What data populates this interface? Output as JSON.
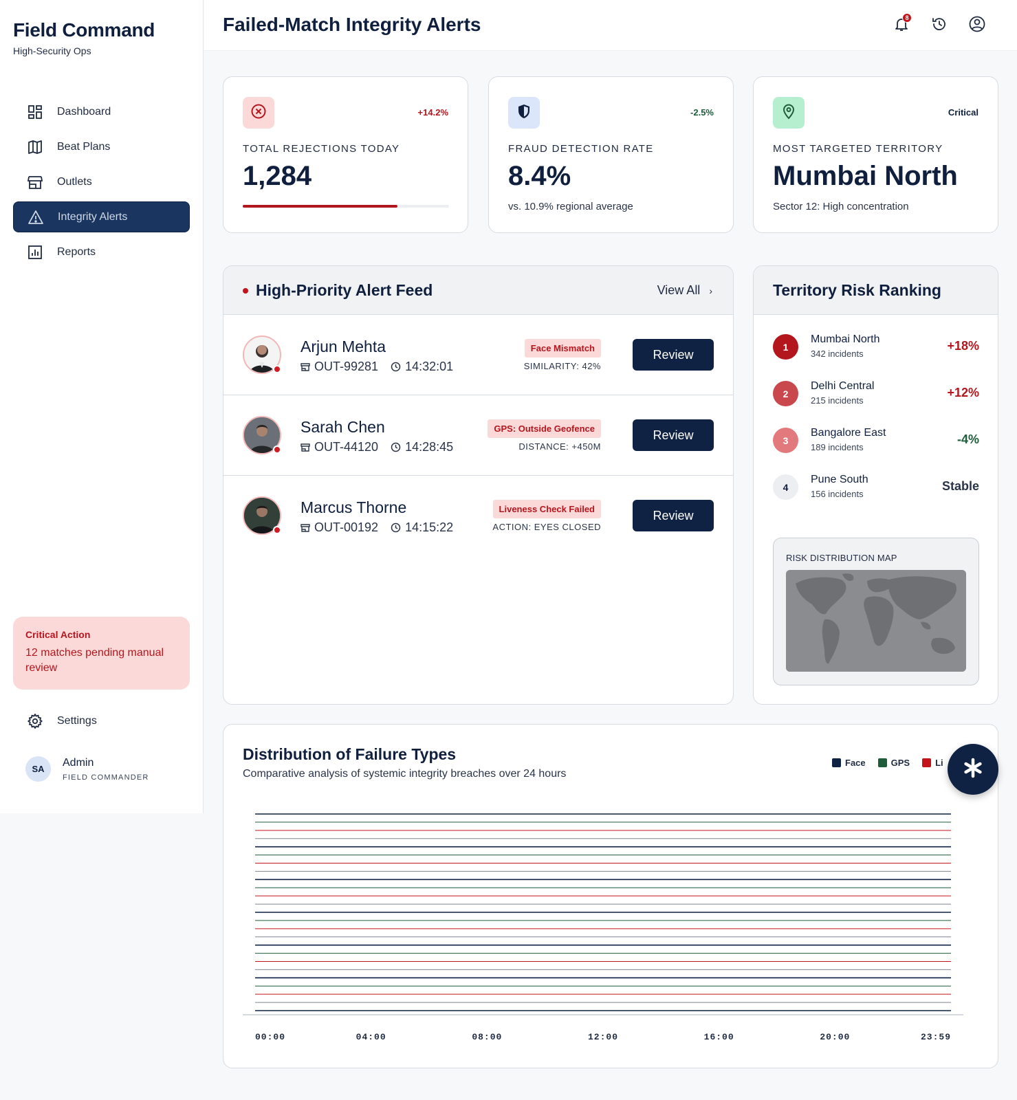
{
  "sidebar": {
    "brand_title": "Field Command",
    "brand_subtitle": "High-Security Ops",
    "nav": [
      {
        "label": "Dashboard",
        "icon": "dashboard-icon",
        "active": false
      },
      {
        "label": "Beat Plans",
        "icon": "map-icon",
        "active": false
      },
      {
        "label": "Outlets",
        "icon": "store-icon",
        "active": false
      },
      {
        "label": "Integrity Alerts",
        "icon": "warning-icon",
        "active": true
      },
      {
        "label": "Reports",
        "icon": "bar-chart-icon",
        "active": false
      }
    ],
    "critical": {
      "title": "Critical Action",
      "text": "12 matches pending manual review"
    },
    "settings_label": "Settings",
    "user": {
      "initials": "SA",
      "name": "Admin",
      "role": "FIELD COMMANDER"
    }
  },
  "header": {
    "title": "Failed-Match Integrity Alerts",
    "notification_count": "8"
  },
  "stats": [
    {
      "label": "TOTAL REJECTIONS TODAY",
      "value": "1,284",
      "delta": "+14.2%",
      "delta_color": "#b3161c",
      "icon": "cancel-circle-icon",
      "icon_bg": "#fcd9d9",
      "progress": 0.75
    },
    {
      "label": "FRAUD DETECTION RATE",
      "value": "8.4%",
      "delta": "-2.5%",
      "delta_color": "#1f5c3a",
      "note": "vs. 10.9% regional average",
      "icon": "shield-icon",
      "icon_bg": "#dbe6fb"
    },
    {
      "label": "MOST TARGETED TERRITORY",
      "value": "Mumbai North",
      "delta": "Critical",
      "delta_color": "#0f1f3d",
      "note": "Sector 12: High concentration",
      "icon": "location-pin-icon",
      "icon_bg": "#b6efcf"
    }
  ],
  "feed": {
    "title": "High-Priority Alert Feed",
    "view_all": "View All",
    "alerts": [
      {
        "name": "Arjun Mehta",
        "outlet": "OUT-99281",
        "time": "14:32:01",
        "tag": "Face Mismatch",
        "detail": "SIMILARITY: 42%",
        "action": "Review"
      },
      {
        "name": "Sarah Chen",
        "outlet": "OUT-44120",
        "time": "14:28:45",
        "tag": "GPS: Outside Geofence",
        "detail": "DISTANCE: +450M",
        "action": "Review"
      },
      {
        "name": "Marcus Thorne",
        "outlet": "OUT-00192",
        "time": "14:15:22",
        "tag": "Liveness Check Failed",
        "detail": "ACTION: EYES CLOSED",
        "action": "Review"
      }
    ]
  },
  "territory": {
    "title": "Territory Risk Ranking",
    "ranks": [
      {
        "rank": "1",
        "name": "Mumbai North",
        "incidents": "342 incidents",
        "change": "+18%",
        "change_color": "#b3161c",
        "circle_bg": "#b3161c",
        "circle_fg": "#ffffff"
      },
      {
        "rank": "2",
        "name": "Delhi Central",
        "incidents": "215 incidents",
        "change": "+12%",
        "change_color": "#b3161c",
        "circle_bg": "#c9484d",
        "circle_fg": "#ffffff"
      },
      {
        "rank": "3",
        "name": "Bangalore East",
        "incidents": "189 incidents",
        "change": "-4%",
        "change_color": "#1f5c3a",
        "circle_bg": "#e27a7d",
        "circle_fg": "#ffffff"
      },
      {
        "rank": "4",
        "name": "Pune South",
        "incidents": "156 incidents",
        "change": "Stable",
        "change_color": "#2a3448",
        "circle_bg": "#eceef1",
        "circle_fg": "#0f1f3d"
      }
    ],
    "map_label": "RISK DISTRIBUTION MAP"
  },
  "chart_data": {
    "type": "line",
    "title": "Distribution of Failure Types",
    "subtitle": "Comparative analysis of systemic integrity breaches over 24 hours",
    "x": [
      "00:00",
      "04:00",
      "08:00",
      "12:00",
      "16:00",
      "20:00",
      "23:59"
    ],
    "legend": [
      {
        "name": "Face",
        "color": "#0f2244"
      },
      {
        "name": "GPS",
        "color": "#1f5c3a"
      },
      {
        "name": "Li",
        "color": "#c4141b"
      }
    ],
    "grid": true,
    "legend_placement": "top-right"
  },
  "fab_icon": "asterisk-icon"
}
